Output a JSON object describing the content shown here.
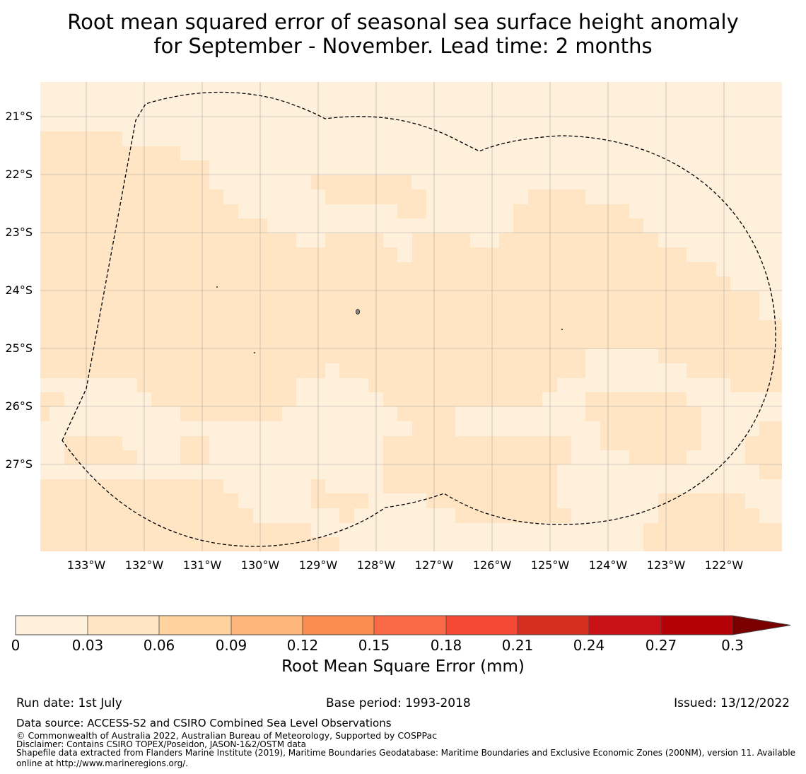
{
  "title_line1": "Root mean squared error of seasonal sea surface height anomaly",
  "title_line2": "for September - November. Lead time: 2 months",
  "map": {
    "lat_labels": [
      "21°S",
      "22°S",
      "23°S",
      "24°S",
      "25°S",
      "26°S",
      "27°S"
    ],
    "lon_labels": [
      "133°W",
      "132°W",
      "131°W",
      "130°W",
      "129°W",
      "128°W",
      "127°W",
      "126°W",
      "125°W",
      "124°W",
      "123°W",
      "122°W"
    ],
    "extent_lon": [
      -133.8,
      -121.0
    ],
    "extent_lat": [
      -20.4,
      -28.5
    ],
    "colors": {
      "class_0_003": "#fff0dc",
      "class_003_006": "#ffe5c4",
      "background_ocean": "#fff0dc"
    },
    "boundary_style": "dashed black EEZ outline",
    "islands": [
      "Pitcairn Islands small islets"
    ]
  },
  "colorbar": {
    "ticks": [
      "0",
      "0.03",
      "0.06",
      "0.09",
      "0.12",
      "0.15",
      "0.18",
      "0.21",
      "0.24",
      "0.27",
      "0.3"
    ],
    "colors": [
      "#fff0dc",
      "#ffe5c4",
      "#ffd29e",
      "#fdb77b",
      "#fc8d50",
      "#fb6a46",
      "#f44934",
      "#d62f22",
      "#c81017",
      "#b40004"
    ],
    "extend_color": "#7a0000",
    "label": "Root Mean Square Error (mm)"
  },
  "footer": {
    "run_date": "Run date: 1st July",
    "base_period": "Base period: 1993-2018",
    "issued": "Issued: 13/12/2022",
    "data_source": "Data source: ACCESS-S2 and CSIRO Combined Sea Level Observations",
    "copyright": "© Commonwealth of Australia 2022, Australian Bureau of Meteorology, Supported by COSPPac",
    "disclaimer": "Disclaimer: Contains CSIRO TOPEX/Poseidon, JASON-1&2/OSTM data",
    "shapefile1": "Shapefile data extracted from Flanders Marine Institute (2019), Maritime Boundaries Geodatabase: Maritime Boundaries and Exclusive Economic Zones (200NM), version 11. Available",
    "shapefile2": "online at http://www.marineregions.org/."
  }
}
